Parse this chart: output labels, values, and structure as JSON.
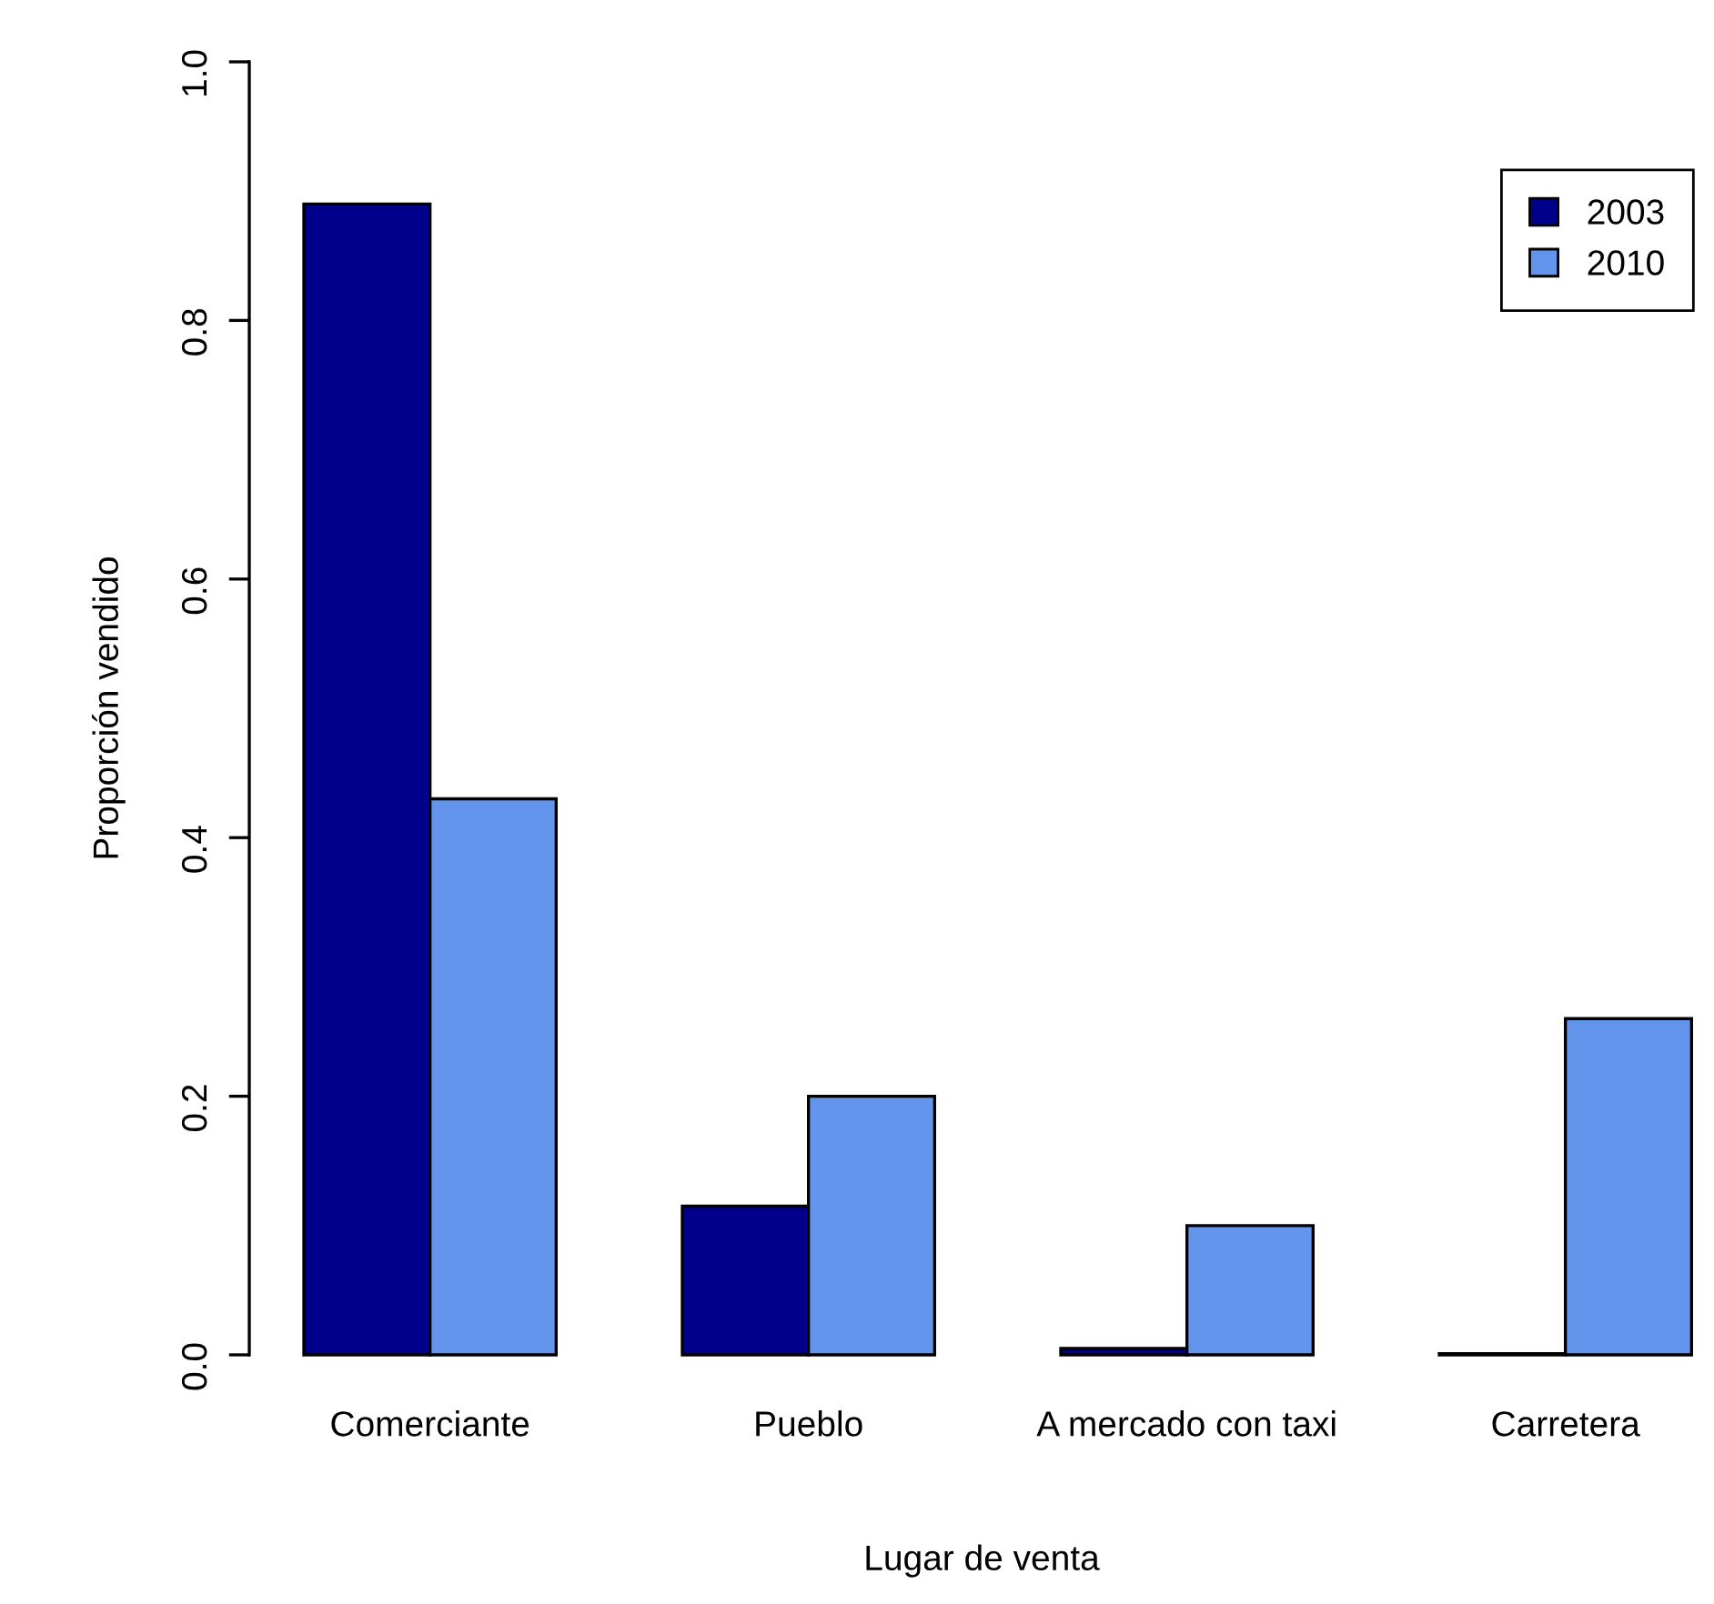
{
  "chart_data": {
    "type": "bar",
    "xlabel": "Lugar de venta",
    "ylabel": "Proporción vendido",
    "categories": [
      "Comerciante",
      "Pueblo",
      "A mercado con taxi",
      "Carretera"
    ],
    "series": [
      {
        "name": "2003",
        "color": "#00008b",
        "values": [
          0.89,
          0.115,
          0.005,
          0.001
        ]
      },
      {
        "name": "2010",
        "color": "#6495ed",
        "values": [
          0.43,
          0.2,
          0.1,
          0.26
        ]
      }
    ],
    "ylim": [
      0,
      1
    ],
    "yticks": [
      {
        "value": 0,
        "label": "0.0"
      },
      0.2,
      0.4,
      0.6,
      0.8,
      {
        "value": 1,
        "label": "1.0"
      }
    ],
    "grid": false,
    "legend": "top right"
  }
}
